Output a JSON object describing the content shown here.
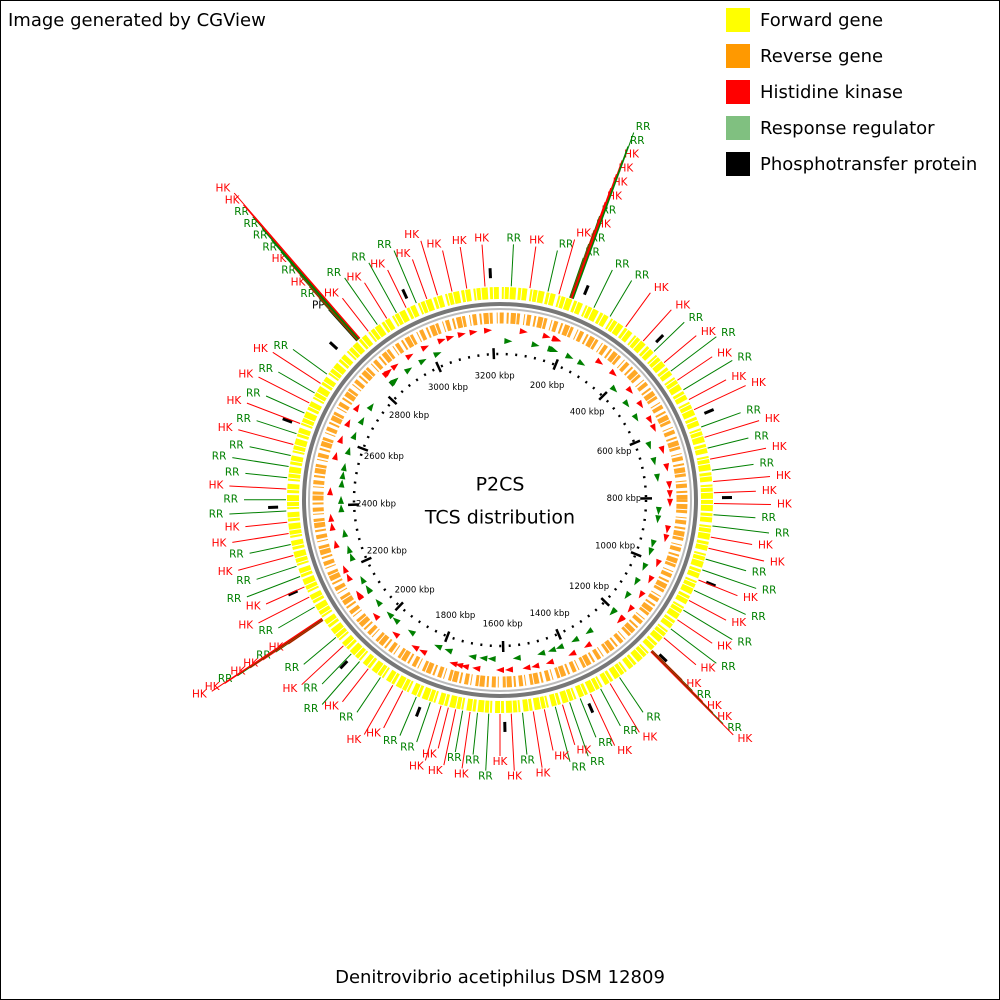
{
  "header": {
    "title": "Image generated by CGView"
  },
  "legend": [
    {
      "label": "Forward gene",
      "color": "#ffff00"
    },
    {
      "label": "Reverse gene",
      "color": "#ff9900"
    },
    {
      "label": "Histidine kinase",
      "color": "#ff0000"
    },
    {
      "label": "Response regulator",
      "color": "#80c080"
    },
    {
      "label": "Phosphotransfer protein",
      "color": "#000000"
    }
  ],
  "map": {
    "title": "P2CS",
    "subtitle": "TCS distribution",
    "genome_length_kbp": 3222,
    "ticks": [
      {
        "value": 200,
        "label": "200 kbp"
      },
      {
        "value": 400,
        "label": "400 kbp"
      },
      {
        "value": 600,
        "label": "600 kbp"
      },
      {
        "value": 800,
        "label": "800 kbp"
      },
      {
        "value": 1000,
        "label": "1000 kbp"
      },
      {
        "value": 1200,
        "label": "1200 kbp"
      },
      {
        "value": 1400,
        "label": "1400 kbp"
      },
      {
        "value": 1600,
        "label": "1600 kbp"
      },
      {
        "value": 1800,
        "label": "1800 kbp"
      },
      {
        "value": 2000,
        "label": "2000 kbp"
      },
      {
        "value": 2200,
        "label": "2200 kbp"
      },
      {
        "value": 2400,
        "label": "2400 kbp"
      },
      {
        "value": 2600,
        "label": "2600 kbp"
      },
      {
        "value": 2800,
        "label": "2800 kbp"
      },
      {
        "value": 3000,
        "label": "3000 kbp"
      },
      {
        "value": 3200,
        "label": "3200 kbp"
      }
    ],
    "label_colors": {
      "HK": "#ff0000",
      "RR": "#008000",
      "PP": "#000000"
    },
    "features": [
      {
        "label": "RR",
        "kbp": 27
      },
      {
        "label": "HK",
        "kbp": 72
      },
      {
        "label": "RR",
        "kbp": 116
      },
      {
        "label": "HK",
        "kbp": 143
      },
      {
        "label": "RR",
        "kbp": 170
      },
      {
        "label": "RR",
        "kbp": 171
      },
      {
        "label": "HK",
        "kbp": 172
      },
      {
        "label": "RR",
        "kbp": 173
      },
      {
        "label": "HK",
        "kbp": 174
      },
      {
        "label": "HK",
        "kbp": 175
      },
      {
        "label": "HK",
        "kbp": 176
      },
      {
        "label": "HK",
        "kbp": 177
      },
      {
        "label": "RR",
        "kbp": 178
      },
      {
        "label": "RR",
        "kbp": 179
      },
      {
        "label": "RR",
        "kbp": 233
      },
      {
        "label": "RR",
        "kbp": 277
      },
      {
        "label": "HK",
        "kbp": 322
      },
      {
        "label": "HK",
        "kbp": 376
      },
      {
        "label": "RR",
        "kbp": 412
      },
      {
        "label": "HK",
        "kbp": 448
      },
      {
        "label": "RR",
        "kbp": 474
      },
      {
        "label": "HK",
        "kbp": 501
      },
      {
        "label": "RR",
        "kbp": 528
      },
      {
        "label": "HK",
        "kbp": 555
      },
      {
        "label": "HK",
        "kbp": 582
      },
      {
        "label": "RR",
        "kbp": 627
      },
      {
        "label": "HK",
        "kbp": 653
      },
      {
        "label": "RR",
        "kbp": 680
      },
      {
        "label": "HK",
        "kbp": 707
      },
      {
        "label": "RR",
        "kbp": 734
      },
      {
        "label": "HK",
        "kbp": 761
      },
      {
        "label": "HK",
        "kbp": 788
      },
      {
        "label": "HK",
        "kbp": 814
      },
      {
        "label": "RR",
        "kbp": 841
      },
      {
        "label": "RR",
        "kbp": 868
      },
      {
        "label": "HK",
        "kbp": 895
      },
      {
        "label": "HK",
        "kbp": 922
      },
      {
        "label": "RR",
        "kbp": 949
      },
      {
        "label": "RR",
        "kbp": 976
      },
      {
        "label": "HK",
        "kbp": 1002
      },
      {
        "label": "RR",
        "kbp": 1029
      },
      {
        "label": "HK",
        "kbp": 1056
      },
      {
        "label": "RR",
        "kbp": 1083
      },
      {
        "label": "HK",
        "kbp": 1110
      },
      {
        "label": "RR",
        "kbp": 1137
      },
      {
        "label": "HK",
        "kbp": 1164
      },
      {
        "label": "HK",
        "kbp": 1205
      },
      {
        "label": "RR",
        "kbp": 1206
      },
      {
        "label": "HK",
        "kbp": 1207
      },
      {
        "label": "HK",
        "kbp": 1208
      },
      {
        "label": "RR",
        "kbp": 1209
      },
      {
        "label": "HK",
        "kbp": 1210
      },
      {
        "label": "RR",
        "kbp": 1307
      },
      {
        "label": "HK",
        "kbp": 1334
      },
      {
        "label": "RR",
        "kbp": 1360
      },
      {
        "label": "HK",
        "kbp": 1387
      },
      {
        "label": "RR",
        "kbp": 1414
      },
      {
        "label": "RR",
        "kbp": 1441
      },
      {
        "label": "HK",
        "kbp": 1459
      },
      {
        "label": "RR",
        "kbp": 1477
      },
      {
        "label": "HK",
        "kbp": 1504
      },
      {
        "label": "HK",
        "kbp": 1531
      },
      {
        "label": "RR",
        "kbp": 1557
      },
      {
        "label": "HK",
        "kbp": 1584
      },
      {
        "label": "HK",
        "kbp": 1611
      },
      {
        "label": "RR",
        "kbp": 1638
      },
      {
        "label": "RR",
        "kbp": 1665
      },
      {
        "label": "HK",
        "kbp": 1683
      },
      {
        "label": "RR",
        "kbp": 1701
      },
      {
        "label": "HK",
        "kbp": 1718
      },
      {
        "label": "HK",
        "kbp": 1736
      },
      {
        "label": "HK",
        "kbp": 1754
      },
      {
        "label": "RR",
        "kbp": 1781
      },
      {
        "label": "RR",
        "kbp": 1817
      },
      {
        "label": "HK",
        "kbp": 1853
      },
      {
        "label": "HK",
        "kbp": 1880
      },
      {
        "label": "RR",
        "kbp": 1915
      },
      {
        "label": "HK",
        "kbp": 1951
      },
      {
        "label": "RR",
        "kbp": 1978
      },
      {
        "label": "RR",
        "kbp": 2005
      },
      {
        "label": "HK",
        "kbp": 2032
      },
      {
        "label": "RR",
        "kbp": 2059
      },
      {
        "label": "HK",
        "kbp": 2110
      },
      {
        "label": "RR",
        "kbp": 2111
      },
      {
        "label": "HK",
        "kbp": 2112
      },
      {
        "label": "HK",
        "kbp": 2113
      },
      {
        "label": "RR",
        "kbp": 2114
      },
      {
        "label": "HK",
        "kbp": 2115
      },
      {
        "label": "HK",
        "kbp": 2116
      },
      {
        "label": "RR",
        "kbp": 2148
      },
      {
        "label": "HK",
        "kbp": 2175
      },
      {
        "label": "HK",
        "kbp": 2202
      },
      {
        "label": "RR",
        "kbp": 2229
      },
      {
        "label": "RR",
        "kbp": 2255
      },
      {
        "label": "HK",
        "kbp": 2282
      },
      {
        "label": "RR",
        "kbp": 2309
      },
      {
        "label": "HK",
        "kbp": 2336
      },
      {
        "label": "HK",
        "kbp": 2363
      },
      {
        "label": "RR",
        "kbp": 2390
      },
      {
        "label": "RR",
        "kbp": 2417
      },
      {
        "label": "HK",
        "kbp": 2443
      },
      {
        "label": "RR",
        "kbp": 2470
      },
      {
        "label": "RR",
        "kbp": 2497
      },
      {
        "label": "RR",
        "kbp": 2524
      },
      {
        "label": "HK",
        "kbp": 2551
      },
      {
        "label": "RR",
        "kbp": 2578
      },
      {
        "label": "HK",
        "kbp": 2604
      },
      {
        "label": "RR",
        "kbp": 2631
      },
      {
        "label": "HK",
        "kbp": 2658
      },
      {
        "label": "RR",
        "kbp": 2685
      },
      {
        "label": "HK",
        "kbp": 2712
      },
      {
        "label": "RR",
        "kbp": 2739
      },
      {
        "label": "PP",
        "kbp": 2846
      },
      {
        "label": "RR",
        "kbp": 2847
      },
      {
        "label": "HK",
        "kbp": 2848
      },
      {
        "label": "RR",
        "kbp": 2849
      },
      {
        "label": "HK",
        "kbp": 2850
      },
      {
        "label": "RR",
        "kbp": 2851
      },
      {
        "label": "RR",
        "kbp": 2852
      },
      {
        "label": "RR",
        "kbp": 2853
      },
      {
        "label": "RR",
        "kbp": 2854
      },
      {
        "label": "HK",
        "kbp": 2855
      },
      {
        "label": "HK",
        "kbp": 2856
      },
      {
        "label": "HK",
        "kbp": 2882
      },
      {
        "label": "RR",
        "kbp": 2909
      },
      {
        "label": "HK",
        "kbp": 2936
      },
      {
        "label": "RR",
        "kbp": 2963
      },
      {
        "label": "HK",
        "kbp": 2989
      },
      {
        "label": "RR",
        "kbp": 3016
      },
      {
        "label": "HK",
        "kbp": 3043
      },
      {
        "label": "HK",
        "kbp": 3070
      },
      {
        "label": "HK",
        "kbp": 3106
      },
      {
        "label": "HK",
        "kbp": 3142
      },
      {
        "label": "HK",
        "kbp": 3186
      }
    ]
  },
  "footer": {
    "caption": "Denitrovibrio acetiphilus DSM 12809"
  }
}
